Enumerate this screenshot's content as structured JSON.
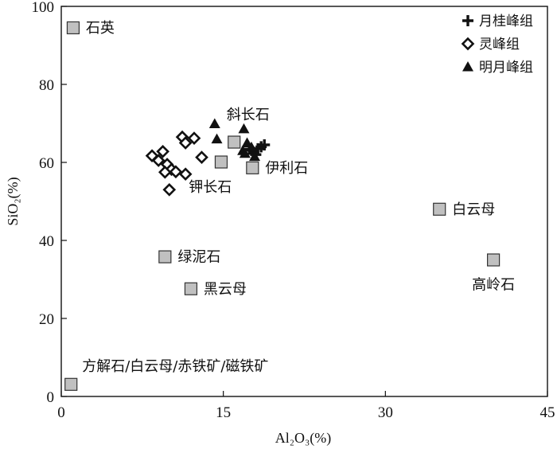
{
  "chart_data": {
    "type": "scatter",
    "xlabel": "Al₂O₃(%)",
    "ylabel": "SiO₂(%)",
    "xlim": [
      0,
      45
    ],
    "ylim": [
      0,
      100
    ],
    "xticks": [
      0,
      15,
      30,
      45
    ],
    "yticks": [
      0,
      20,
      40,
      60,
      80,
      100
    ],
    "grid": false,
    "legend_position": "top-right",
    "colors": {
      "marker": "#111111",
      "reference_fill": "#c0c0c0",
      "reference_stroke": "#333333"
    },
    "reference_minerals": [
      {
        "label": "石英",
        "x": 1.1,
        "y": 94.5,
        "label_side": "right"
      },
      {
        "label": "伊利石",
        "x": 17.7,
        "y": 58.6,
        "label_side": "right"
      },
      {
        "label": "白云母",
        "x": 35.0,
        "y": 48.0,
        "label_side": "right"
      },
      {
        "label": "高岭石",
        "x": 40.0,
        "y": 35.0,
        "label_side": "below"
      },
      {
        "label": "绿泥石",
        "x": 9.6,
        "y": 35.8,
        "label_side": "right"
      },
      {
        "label": "黑云母",
        "x": 12.0,
        "y": 27.6,
        "label_side": "right"
      },
      {
        "label": "方解石/白云母/赤铁矿/磁铁矿",
        "x": 0.9,
        "y": 3.1,
        "label_side": "above"
      }
    ],
    "reference_minerals_unlabeled": [
      {
        "x": 16.0,
        "y": 65.2
      },
      {
        "x": 14.8,
        "y": 60.1
      }
    ],
    "annotations": [
      {
        "text": "斜长石",
        "x": 15.3,
        "y": 71.0
      },
      {
        "text": "钾长石",
        "x": 11.8,
        "y": 52.5
      }
    ],
    "series": [
      {
        "name": "月桂峰组",
        "marker": "plus",
        "points": [
          {
            "x": 17.8,
            "y": 62.6
          },
          {
            "x": 18.2,
            "y": 63.5
          },
          {
            "x": 18.5,
            "y": 64.0
          },
          {
            "x": 18.8,
            "y": 64.5
          },
          {
            "x": 18.0,
            "y": 62.0
          },
          {
            "x": 17.4,
            "y": 63.4
          }
        ]
      },
      {
        "name": "灵峰组",
        "marker": "diamond",
        "points": [
          {
            "x": 8.4,
            "y": 61.7
          },
          {
            "x": 9.0,
            "y": 60.5
          },
          {
            "x": 9.4,
            "y": 62.8
          },
          {
            "x": 9.8,
            "y": 59.5
          },
          {
            "x": 10.2,
            "y": 58.2
          },
          {
            "x": 10.6,
            "y": 57.6
          },
          {
            "x": 9.6,
            "y": 57.5
          },
          {
            "x": 11.5,
            "y": 57.0
          },
          {
            "x": 11.2,
            "y": 66.5
          },
          {
            "x": 11.5,
            "y": 65.0
          },
          {
            "x": 12.3,
            "y": 66.2
          },
          {
            "x": 13.0,
            "y": 61.3
          },
          {
            "x": 10.0,
            "y": 53.0
          }
        ]
      },
      {
        "name": "明月峰组",
        "marker": "triangle",
        "points": [
          {
            "x": 14.2,
            "y": 69.9
          },
          {
            "x": 14.4,
            "y": 66.0
          },
          {
            "x": 16.9,
            "y": 68.6
          },
          {
            "x": 17.2,
            "y": 65.0
          },
          {
            "x": 17.6,
            "y": 63.9
          },
          {
            "x": 16.8,
            "y": 63.0
          },
          {
            "x": 17.0,
            "y": 62.3
          },
          {
            "x": 17.9,
            "y": 61.5
          }
        ]
      }
    ]
  }
}
